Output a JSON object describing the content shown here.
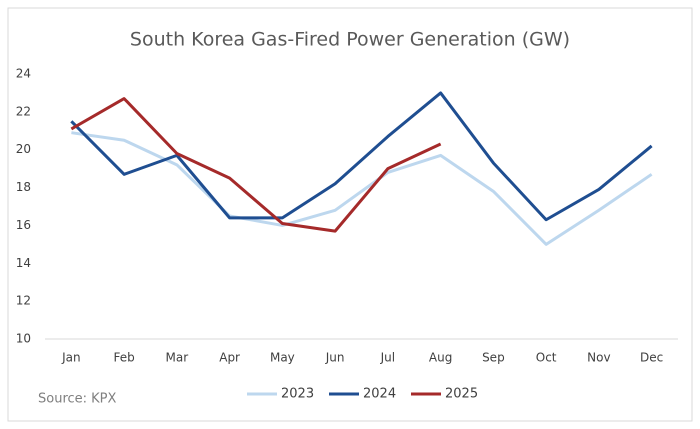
{
  "chart_data": {
    "type": "line",
    "title": "South Korea Gas-Fired Power Generation (GW)",
    "annotation": "Source: KPX",
    "categories": [
      "Jan",
      "Feb",
      "Mar",
      "Apr",
      "May",
      "Jun",
      "Jul",
      "Aug",
      "Sep",
      "Oct",
      "Nov",
      "Dec"
    ],
    "series": [
      {
        "name": "2023",
        "color": "#bdd7ee",
        "values": [
          20.9,
          20.5,
          19.2,
          16.5,
          16.0,
          16.8,
          18.8,
          19.7,
          17.8,
          15.0,
          16.8,
          18.7
        ]
      },
      {
        "name": "2024",
        "color": "#1f4e91",
        "values": [
          21.5,
          18.7,
          19.7,
          16.4,
          16.4,
          18.2,
          20.7,
          23.0,
          19.3,
          16.3,
          17.9,
          20.2
        ]
      },
      {
        "name": "2025",
        "color": "#a52a2a",
        "values": [
          21.1,
          22.7,
          19.8,
          18.5,
          16.1,
          15.7,
          19.0,
          20.3,
          null,
          null,
          null,
          null
        ]
      }
    ],
    "ylim": [
      10,
      24
    ],
    "yticks": [
      10,
      12,
      14,
      16,
      18,
      20,
      22,
      24
    ],
    "grid": false,
    "legend": "bottom"
  }
}
